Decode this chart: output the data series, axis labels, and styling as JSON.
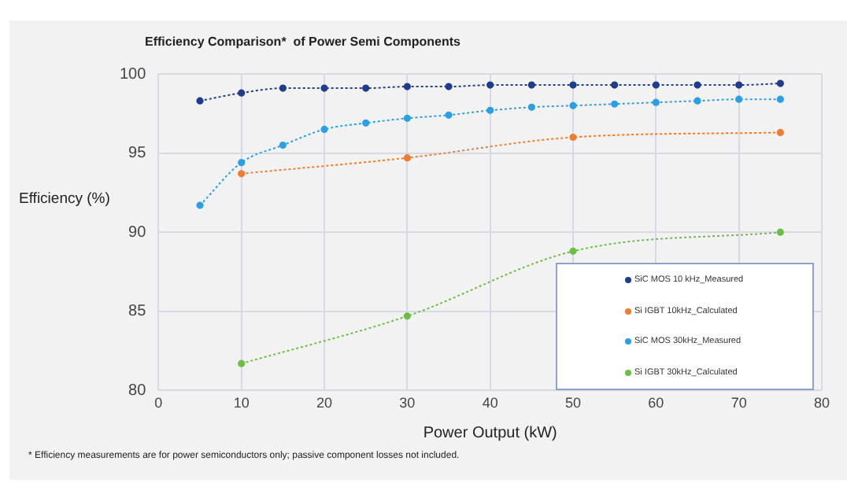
{
  "chart_data": {
    "type": "line",
    "title": "Efficiency Comparison*  of Power Semi Components",
    "xlabel": "Power Output (kW)",
    "ylabel": "Efficiency (%)",
    "xlim": [
      0,
      80
    ],
    "xticks": [
      0,
      10,
      20,
      30,
      40,
      50,
      60,
      70,
      80
    ],
    "ylim": [
      80,
      100
    ],
    "yticks": [
      80,
      85,
      90,
      95,
      100
    ],
    "grid": true,
    "legend": "bottom right",
    "marker": "circle",
    "line_style": "dotted",
    "series": [
      {
        "name": "SiC MOS 10 kHz_Measured",
        "color": "#1f3d8c",
        "x": [
          5,
          10,
          15,
          20,
          25,
          30,
          35,
          40,
          45,
          50,
          55,
          60,
          65,
          70,
          75
        ],
        "values": [
          98.3,
          98.8,
          99.1,
          99.1,
          99.1,
          99.2,
          99.2,
          99.3,
          99.3,
          99.3,
          99.3,
          99.3,
          99.3,
          99.3,
          99.4
        ]
      },
      {
        "name": "Si IGBT 10kHz_Calculated",
        "color": "#ed7d31",
        "x": [
          10,
          30,
          50,
          75
        ],
        "values": [
          93.7,
          94.7,
          96.0,
          96.3
        ]
      },
      {
        "name": "SiC MOS 30kHz_Measured",
        "color": "#2aa0e6",
        "x": [
          5,
          10,
          15,
          20,
          25,
          30,
          35,
          40,
          45,
          50,
          55,
          60,
          65,
          70,
          75
        ],
        "values": [
          91.7,
          94.4,
          95.5,
          96.5,
          96.9,
          97.2,
          97.4,
          97.7,
          97.9,
          98.0,
          98.1,
          98.2,
          98.3,
          98.4,
          98.4
        ]
      },
      {
        "name": "Si IGBT 30kHz_Calculated",
        "color": "#6cbf45",
        "x": [
          10,
          30,
          50,
          75
        ],
        "values": [
          81.7,
          84.7,
          88.8,
          90.0
        ]
      }
    ],
    "annotations": [
      "* Efficiency measurements are for power  semiconductors only; passive component losses not included."
    ]
  }
}
